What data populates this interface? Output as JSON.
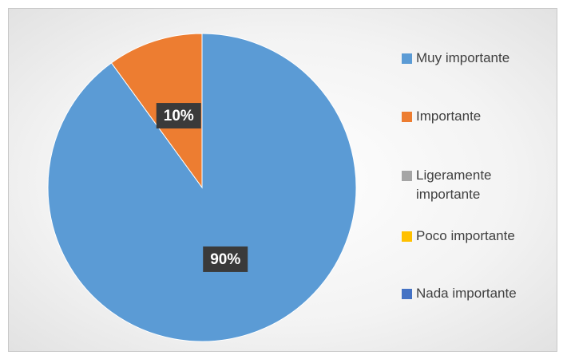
{
  "chart_data": {
    "type": "pie",
    "categories": [
      "Muy importante",
      "Importante",
      "Ligeramente importante",
      "Poco importante",
      "Nada importante"
    ],
    "values": [
      90,
      10,
      0,
      0,
      0
    ],
    "value_labels": [
      "90%",
      "10%",
      null,
      null,
      null
    ],
    "colors": [
      "#5b9bd5",
      "#ed7d31",
      "#a5a5a5",
      "#ffc000",
      "#4472c4"
    ],
    "legend": "right"
  }
}
